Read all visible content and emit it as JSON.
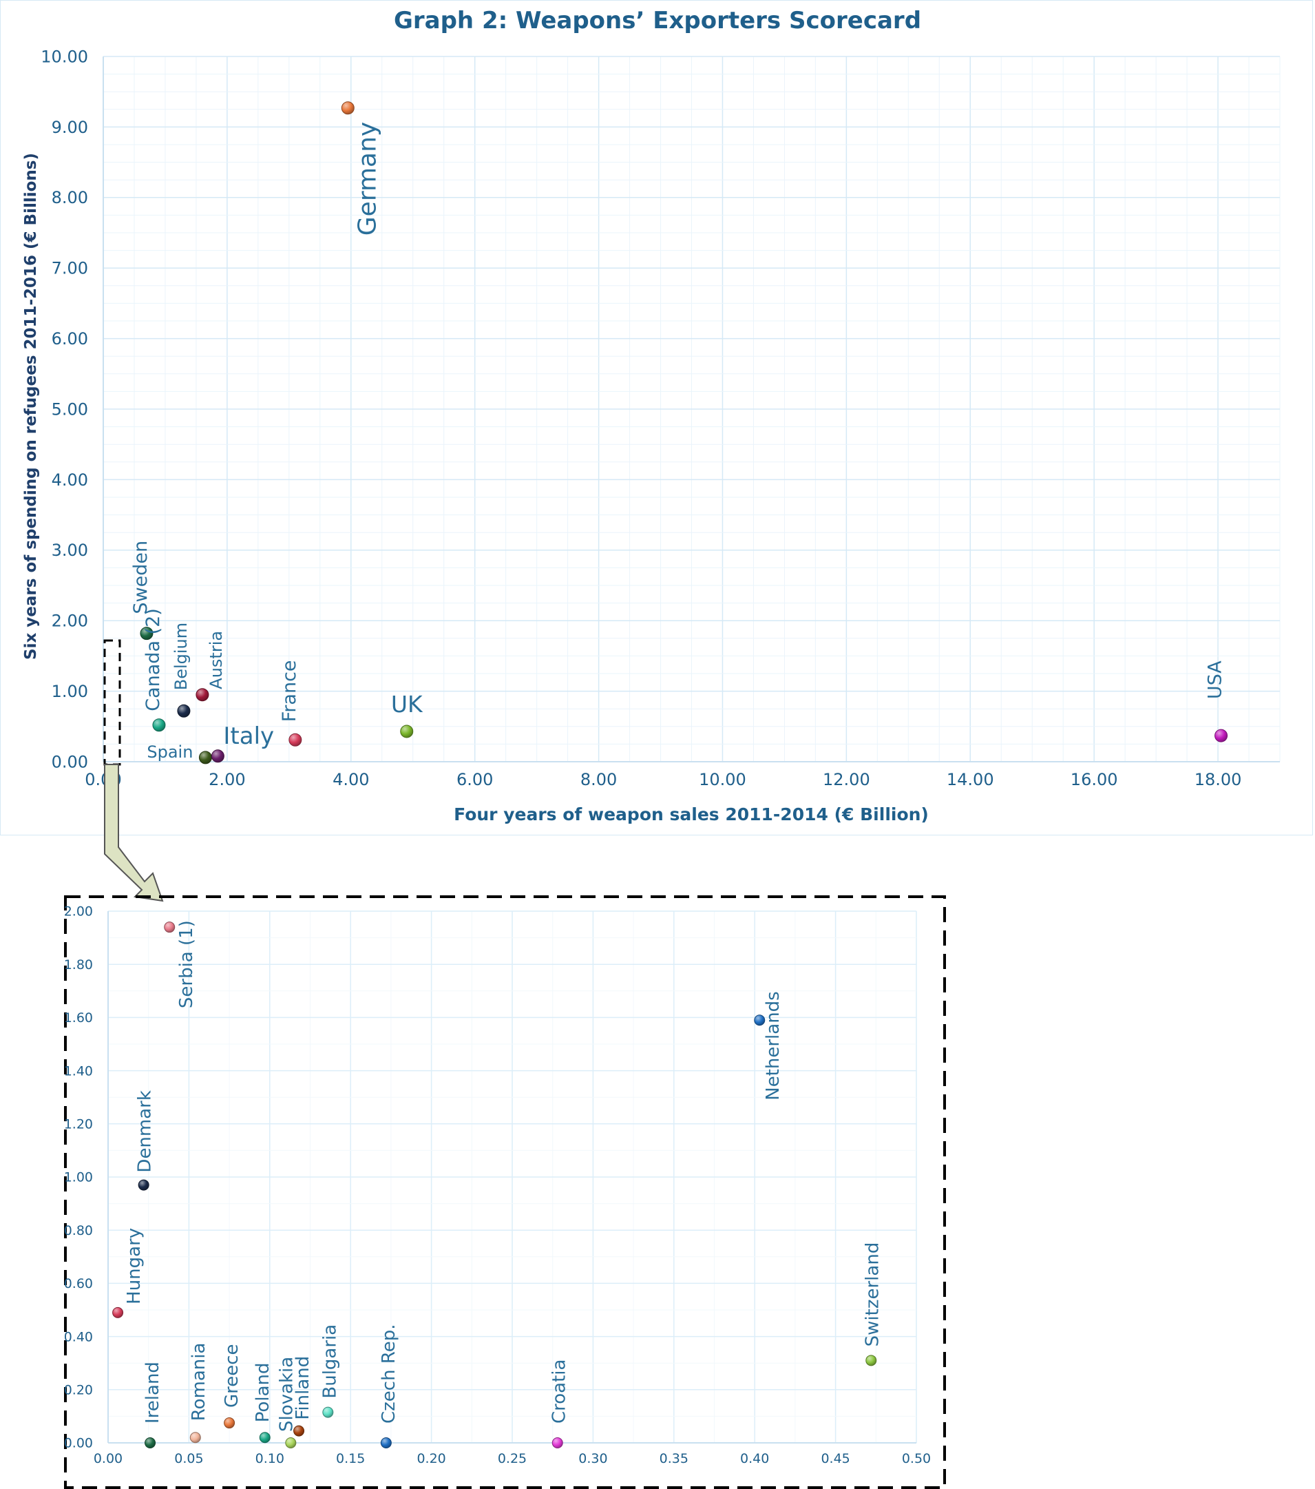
{
  "chart_data": [
    {
      "type": "scatter",
      "title": "Graph 2: Weapons’ Exporters Scorecard",
      "xlabel": "Four years of weapon sales 2011-2014 (€ Billion)",
      "ylabel": "Six years of spending on refugees 2011-2016 (€ Billions)",
      "xlim": [
        0,
        19
      ],
      "ylim": [
        0,
        10
      ],
      "x_ticks": [
        "0.00",
        "2.00",
        "4.00",
        "6.00",
        "8.00",
        "10.00",
        "12.00",
        "14.00",
        "16.00",
        "18.00"
      ],
      "y_ticks": [
        "0.00",
        "1.00",
        "2.00",
        "3.00",
        "4.00",
        "5.00",
        "6.00",
        "7.00",
        "8.00",
        "9.00",
        "10.00"
      ],
      "grid": true,
      "points": [
        {
          "label": "Germany",
          "x": 3.95,
          "y": 9.27,
          "color": "#e8773a"
        },
        {
          "label": "Sweden",
          "x": 0.7,
          "y": 1.82,
          "color": "#1d6b45"
        },
        {
          "label": "Canada (2)",
          "x": 0.9,
          "y": 0.52,
          "color": "#1aa987"
        },
        {
          "label": "Belgium",
          "x": 1.3,
          "y": 0.72,
          "color": "#1b2b4a"
        },
        {
          "label": "Austria",
          "x": 1.6,
          "y": 0.95,
          "color": "#a11a3a"
        },
        {
          "label": "Spain",
          "x": 1.65,
          "y": 0.06,
          "color": "#3e5a1c"
        },
        {
          "label": "Italy",
          "x": 1.85,
          "y": 0.08,
          "color": "#6a1f6b"
        },
        {
          "label": "France",
          "x": 3.1,
          "y": 0.31,
          "color": "#d63c5a"
        },
        {
          "label": "UK",
          "x": 4.9,
          "y": 0.43,
          "color": "#7ab62a"
        },
        {
          "label": "USA",
          "x": 18.05,
          "y": 0.37,
          "color": "#c21bbd"
        }
      ]
    },
    {
      "type": "scatter",
      "title": "",
      "xlabel": "",
      "ylabel": "",
      "xlim": [
        0,
        0.5
      ],
      "ylim": [
        0,
        2
      ],
      "x_ticks": [
        "0.00",
        "0.05",
        "0.10",
        "0.15",
        "0.20",
        "0.25",
        "0.30",
        "0.35",
        "0.40",
        "0.45",
        "0.50"
      ],
      "y_ticks": [
        "0.00",
        "0.20",
        "0.40",
        "0.60",
        "0.80",
        "1.00",
        "1.20",
        "1.40",
        "1.60",
        "1.80",
        "2.00"
      ],
      "grid": true,
      "points": [
        {
          "label": "Serbia (1)",
          "x": 0.038,
          "y": 1.94,
          "color": "#e87a8a"
        },
        {
          "label": "Netherlands",
          "x": 0.403,
          "y": 1.59,
          "color": "#1f6fc4"
        },
        {
          "label": "Denmark",
          "x": 0.022,
          "y": 0.97,
          "color": "#1b2b4a"
        },
        {
          "label": "Hungary",
          "x": 0.006,
          "y": 0.49,
          "color": "#d63c5a"
        },
        {
          "label": "Switzerland",
          "x": 0.472,
          "y": 0.31,
          "color": "#8cc63f"
        },
        {
          "label": "Ireland",
          "x": 0.026,
          "y": 0.0,
          "color": "#1d6b45"
        },
        {
          "label": "Romania",
          "x": 0.054,
          "y": 0.02,
          "color": "#f2b49a"
        },
        {
          "label": "Greece",
          "x": 0.075,
          "y": 0.075,
          "color": "#e8773a"
        },
        {
          "label": "Poland",
          "x": 0.097,
          "y": 0.02,
          "color": "#1aa987"
        },
        {
          "label": "Slovakia",
          "x": 0.113,
          "y": 0.0,
          "color": "#a8d45a"
        },
        {
          "label": "Finland",
          "x": 0.118,
          "y": 0.045,
          "color": "#a8420e"
        },
        {
          "label": "Bulgaria",
          "x": 0.136,
          "y": 0.115,
          "color": "#5de0c6"
        },
        {
          "label": "Czech Rep.",
          "x": 0.172,
          "y": 0.0,
          "color": "#1f6fc4"
        },
        {
          "label": "Croatia",
          "x": 0.278,
          "y": 0.0,
          "color": "#e23ad6"
        }
      ]
    }
  ]
}
